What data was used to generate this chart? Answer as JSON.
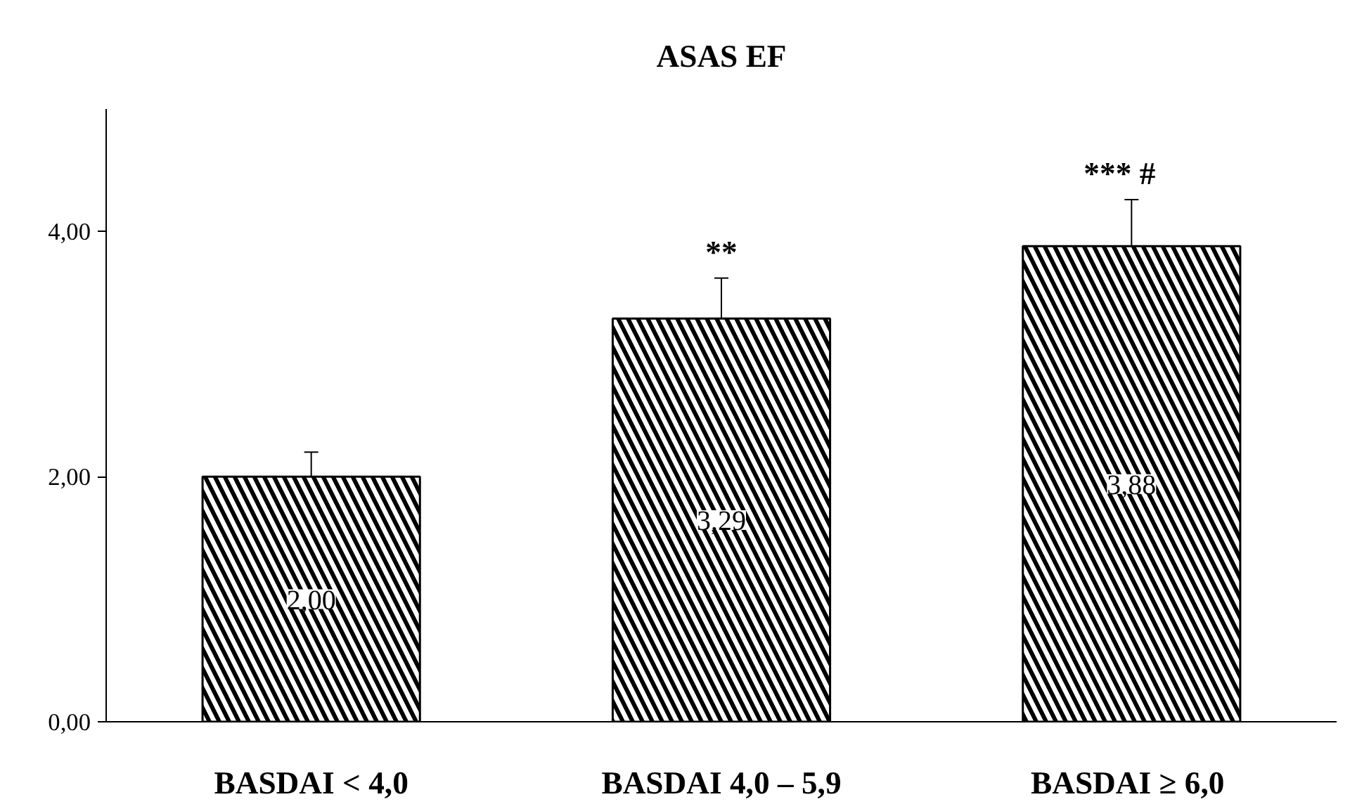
{
  "chart_data": {
    "type": "bar",
    "title": "ASAS EF",
    "categories": [
      "BASDAI < 4,0",
      "BASDAI 4,0 – 5,9",
      "BASDAI  ≥ 6,0"
    ],
    "values": [
      2.0,
      3.29,
      3.88
    ],
    "errors": [
      0.2,
      0.33,
      0.38
    ],
    "value_labels": [
      "2,00",
      "3,29",
      "3,88"
    ],
    "color": "#000000",
    "ylim": [
      0,
      5
    ],
    "yticks": [
      {
        "value": 0,
        "label": "0,00"
      },
      {
        "value": 2,
        "label": "2,00"
      },
      {
        "value": 4,
        "label": "4,00"
      }
    ],
    "annotations": [
      "**",
      "***    #"
    ],
    "grid": false
  }
}
